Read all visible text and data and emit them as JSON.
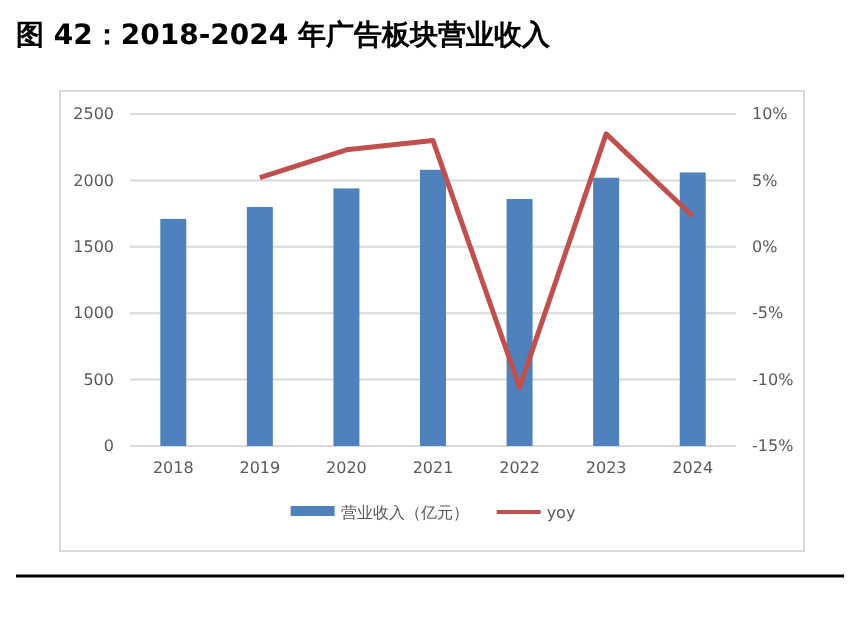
{
  "chart_data": {
    "type": "bar",
    "title": "图 42：2018-2024 年广告板块营业收入",
    "categories": [
      "2018",
      "2019",
      "2020",
      "2021",
      "2022",
      "2023",
      "2024"
    ],
    "series": [
      {
        "name": "营业收入（亿元）",
        "color": "#4f81bd",
        "values": [
          1710,
          1800,
          1940,
          2080,
          1860,
          2020,
          2060
        ]
      },
      {
        "name": "yoy",
        "type": "line",
        "axis": "y2",
        "color": "#c0504d",
        "values": [
          null,
          5.2,
          7.3,
          8.0,
          -10.6,
          8.5,
          2.3
        ]
      }
    ],
    "ylim": [
      0,
      2500
    ],
    "yticks": [
      0,
      500,
      1000,
      1500,
      2000,
      2500
    ],
    "y2lim": [
      -15,
      10
    ],
    "y2ticks": [
      {
        "value": -15,
        "label": "-15%"
      },
      {
        "value": -10,
        "label": "-10%"
      },
      {
        "value": -5,
        "label": "-5%"
      },
      {
        "value": 0,
        "label": "0%"
      },
      {
        "value": 5,
        "label": "5%"
      },
      {
        "value": 10,
        "label": "10%"
      }
    ],
    "grid": "y",
    "legend": "bottom",
    "marker": "none",
    "line_style": "solid"
  }
}
